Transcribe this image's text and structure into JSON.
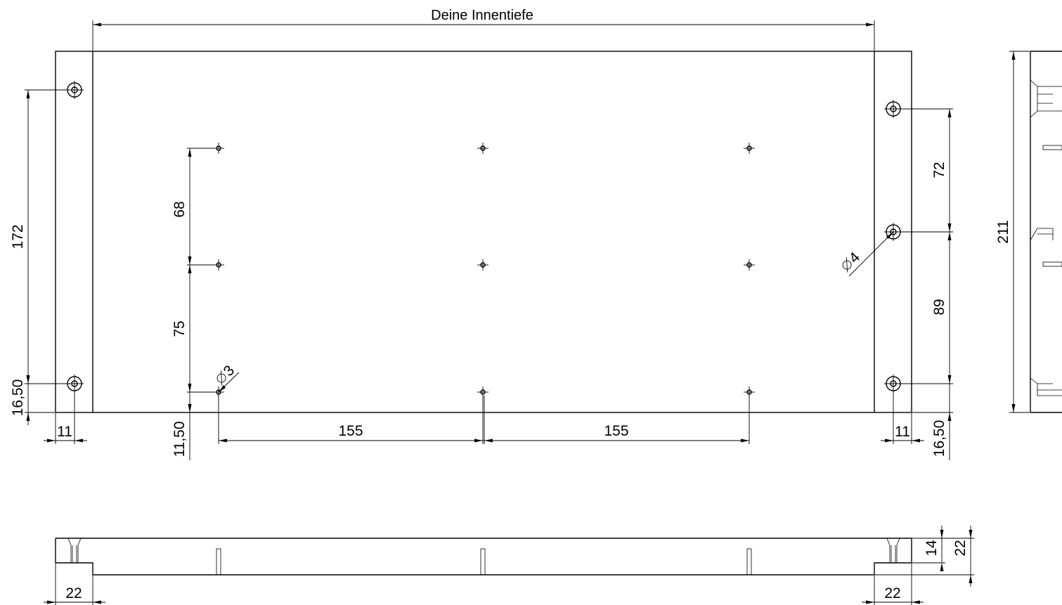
{
  "title": "Deine Innentiefe",
  "dimensions": {
    "left_vertical_172": "172",
    "left_16_50": "16,50",
    "left_11": "11",
    "bottom_11_50": "11,50",
    "vertical_68": "68",
    "vertical_75": "75",
    "horiz_155_left": "155",
    "horiz_155_right": "155",
    "dia_3": "3",
    "dia_4": "4",
    "right_72": "72",
    "right_89": "89",
    "right_11": "11",
    "right_16_50": "16,50",
    "side_211": "211",
    "front_22_left": "22",
    "front_22_right": "22",
    "front_14": "14",
    "front_22_height": "22"
  },
  "symbols": {
    "diameter": "⌀"
  }
}
